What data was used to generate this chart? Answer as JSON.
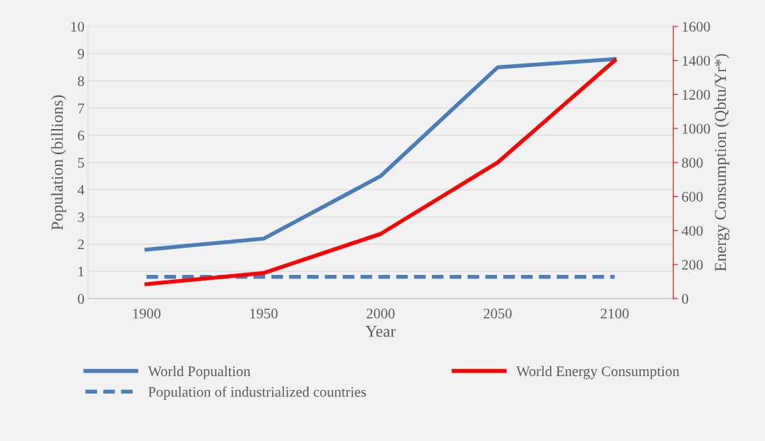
{
  "chart_data": {
    "type": "line",
    "xlabel": "Year",
    "ylabel": "Population (billions)",
    "y2label": "Energy Consumption (Qbtu/Yr*)",
    "categories": [
      "1900",
      "1950",
      "2000",
      "2050",
      "2100"
    ],
    "series": [
      {
        "name": "World Popualtion",
        "color": "#4a7ebb",
        "values": [
          1.8,
          2.2,
          4.5,
          8.5,
          8.8
        ],
        "line_style": "solid"
      },
      {
        "name": "Population of industrialized countries",
        "color": "#4a7ebb",
        "values": [
          0.8,
          0.8,
          0.8,
          0.8,
          0.8
        ],
        "line_style": "dashed"
      },
      {
        "name": "World Energy Consumption",
        "color": "#ff0000",
        "values": [
          85,
          150,
          380,
          800,
          1400
        ],
        "line_style": "solid",
        "axis": "y2"
      }
    ],
    "ylim": [
      0,
      10
    ],
    "yticks": [
      0,
      1,
      2,
      3,
      4,
      5,
      6,
      7,
      8,
      9,
      10
    ],
    "y2lim": [
      0,
      1600
    ],
    "y2ticks": [
      0,
      200,
      400,
      600,
      800,
      1000,
      1200,
      1400,
      1600
    ],
    "grid": "y",
    "legend": "bottom",
    "marker": "none"
  }
}
